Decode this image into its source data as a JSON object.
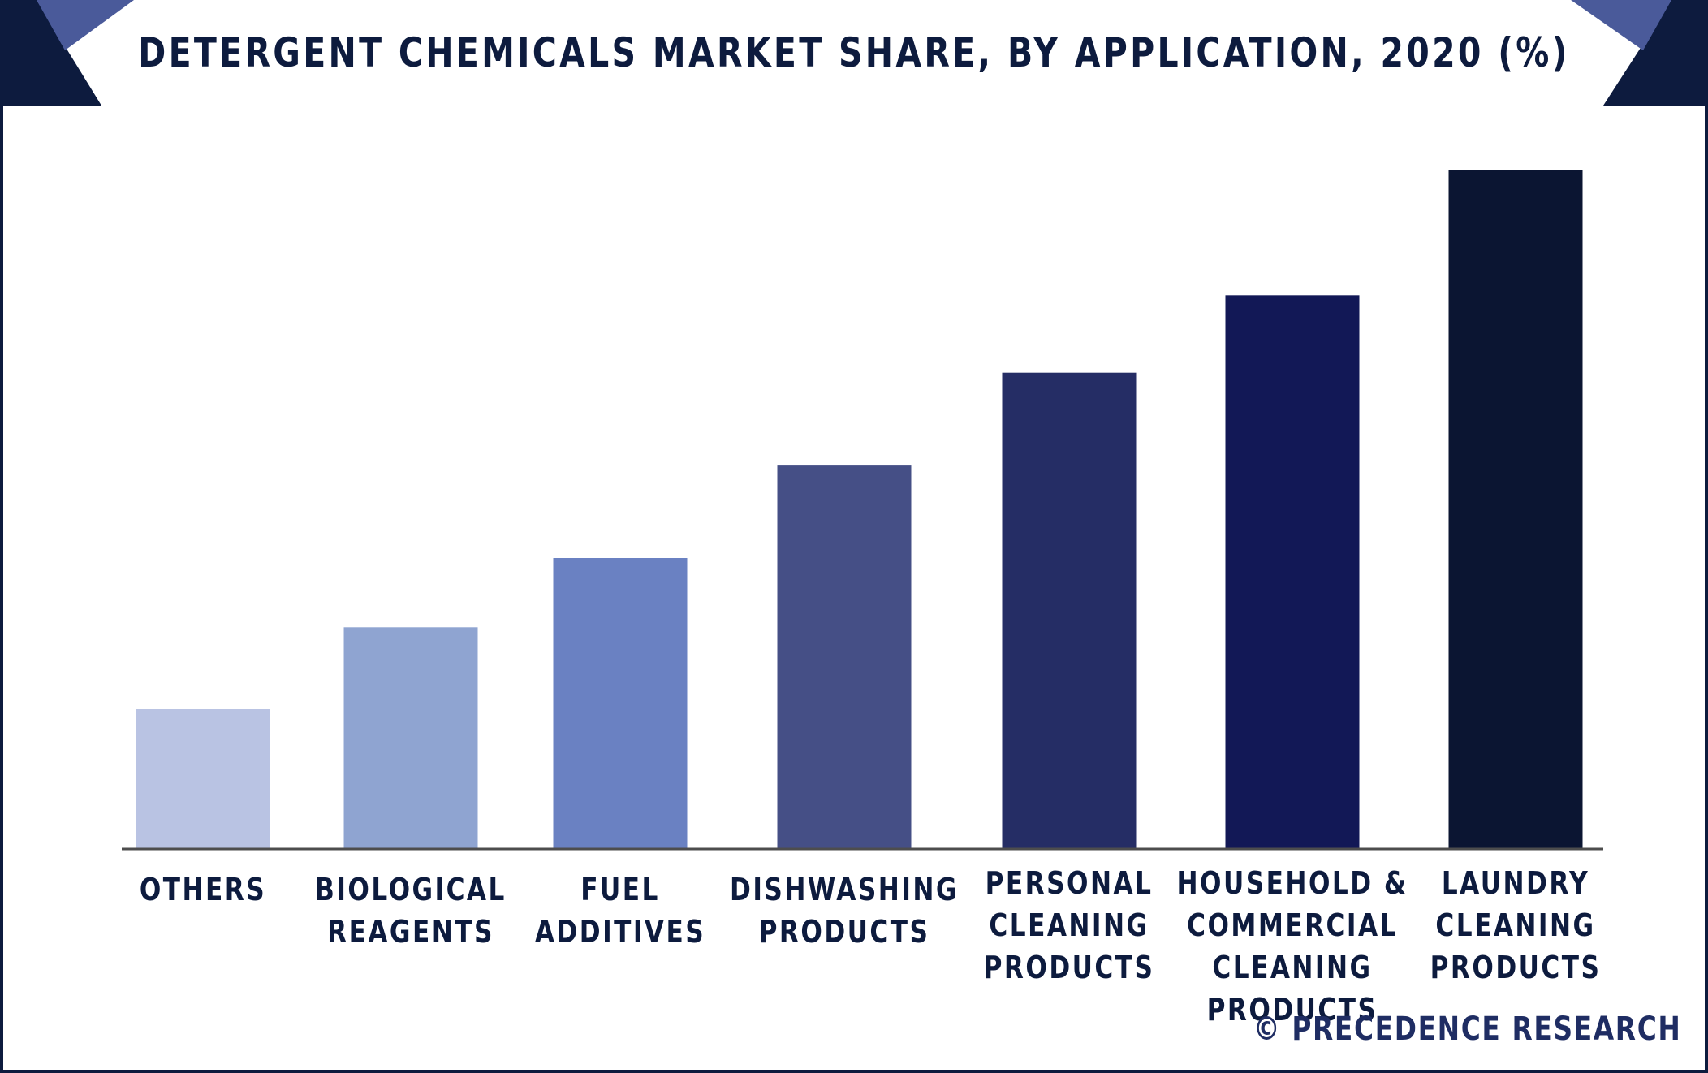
{
  "header": {
    "title": "DETERGENT CHEMICALS MARKET SHARE, BY APPLICATION, 2020 (%)"
  },
  "footer": {
    "source": "© PRECEDENCE RESEARCH"
  },
  "colors": {
    "navy": "#0d1b3e",
    "accent": "#4a5a9a",
    "baseline": "#4d4d4d"
  },
  "chart_data": {
    "type": "bar",
    "title": "DETERGENT CHEMICALS MARKET SHARE, BY APPLICATION, 2020 (%)",
    "xlabel": "",
    "ylabel": "",
    "grid": false,
    "categories": [
      "OTHERS",
      "BIOLOGICAL\nREAGENTS",
      "FUEL\nADDITIVES",
      "DISHWASHING\nPRODUCTS",
      "PERSONAL\nCLEANING\nPRODUCTS",
      "HOUSEHOLD &\nCOMMERCIAL\nCLEANING PRODUCTS",
      "LAUNDRY\nCLEANING\nPRODUCTS"
    ],
    "values": [
      6,
      9.5,
      12.5,
      16.5,
      20.5,
      23.8,
      29.2
    ],
    "ylim": [
      0,
      30
    ],
    "bar_colors": [
      "#b9c3e3",
      "#8fa4d1",
      "#6a81c2",
      "#454f86",
      "#252d65",
      "#121856",
      "#0b1532"
    ]
  }
}
